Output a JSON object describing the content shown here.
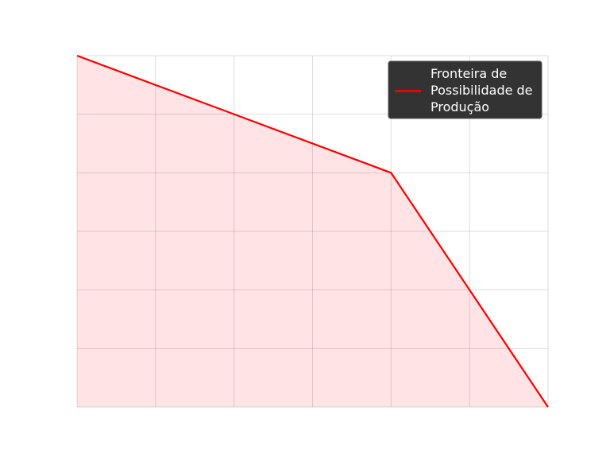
{
  "chart_data": {
    "type": "area",
    "title": "",
    "xlabel": "",
    "ylabel": "",
    "xlim": [
      0,
      6
    ],
    "ylim": [
      0,
      6
    ],
    "grid": true,
    "x_ticks": [
      0,
      1,
      2,
      3,
      4,
      5,
      6
    ],
    "y_ticks": [
      0,
      1,
      2,
      3,
      4,
      5,
      6
    ],
    "tick_labels_visible": false,
    "series": [
      {
        "name": "Fronteira de Possibilidade de Produção",
        "x": [
          0,
          4,
          6
        ],
        "y": [
          6,
          4,
          0
        ],
        "color": "#ff0000",
        "fill_color": "#ffe3e5"
      }
    ],
    "legend": {
      "placement": "top-right",
      "lines": [
        "Fronteira de",
        "Possibilidade de",
        "Produção"
      ],
      "background": "#333333"
    }
  }
}
